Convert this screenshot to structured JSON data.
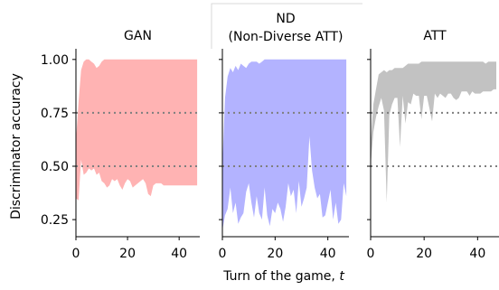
{
  "figure": {
    "ylabel": "Discriminator accuracy",
    "xlabel_prefix": "Turn of the game, ",
    "xlabel_var": "t",
    "reference_lines": [
      0.5,
      0.75
    ],
    "reference_line_color": "#7f7f7f"
  },
  "chart_data": [
    {
      "type": "area",
      "title": "GAN",
      "title_lines": [
        "GAN"
      ],
      "fill_color": "#ffb3b3",
      "x": [
        0,
        1,
        2,
        3,
        4,
        5,
        6,
        7,
        8,
        9,
        10,
        11,
        12,
        13,
        14,
        15,
        16,
        17,
        18,
        19,
        20,
        21,
        22,
        23,
        24,
        25,
        26,
        27,
        28,
        29,
        30,
        31,
        32,
        33,
        34,
        35,
        36,
        37,
        38,
        39,
        40,
        41,
        42,
        43,
        44,
        45,
        46,
        47
      ],
      "upper": [
        0.62,
        0.8,
        0.95,
        0.99,
        1.0,
        1.0,
        0.99,
        0.98,
        0.96,
        0.97,
        0.99,
        1.0,
        1.0,
        1.0,
        1.0,
        1.0,
        1.0,
        1.0,
        1.0,
        1.0,
        1.0,
        1.0,
        1.0,
        1.0,
        1.0,
        1.0,
        1.0,
        1.0,
        1.0,
        1.0,
        1.0,
        1.0,
        1.0,
        1.0,
        1.0,
        1.0,
        1.0,
        1.0,
        1.0,
        1.0,
        1.0,
        1.0,
        1.0,
        1.0,
        1.0,
        1.0,
        1.0,
        1.0
      ],
      "lower": [
        0.35,
        0.34,
        0.53,
        0.46,
        0.47,
        0.49,
        0.48,
        0.49,
        0.46,
        0.47,
        0.43,
        0.42,
        0.4,
        0.41,
        0.44,
        0.43,
        0.44,
        0.41,
        0.39,
        0.42,
        0.44,
        0.43,
        0.4,
        0.41,
        0.42,
        0.43,
        0.44,
        0.42,
        0.37,
        0.36,
        0.41,
        0.42,
        0.42,
        0.42,
        0.41,
        0.41,
        0.41,
        0.41,
        0.41,
        0.41,
        0.41,
        0.41,
        0.41,
        0.41,
        0.41,
        0.41,
        0.41,
        0.41
      ],
      "xlim": [
        0,
        48
      ],
      "ylim": [
        0.17,
        1.05
      ],
      "xticks": [
        0,
        20,
        40
      ],
      "xtick_labels": [
        "0",
        "20",
        "40"
      ],
      "yticks": [
        0.25,
        0.5,
        0.75,
        1.0
      ],
      "ytick_labels": [
        "0.25",
        "0.50",
        "0.75",
        "1.00"
      ]
    },
    {
      "type": "area",
      "title": "ND (Non-Diverse ATT)",
      "title_lines": [
        "ND",
        "(Non-Diverse ATT)"
      ],
      "fill_color": "#b3b3ff",
      "x": [
        0,
        1,
        2,
        3,
        4,
        5,
        6,
        7,
        8,
        9,
        10,
        11,
        12,
        13,
        14,
        15,
        16,
        17,
        18,
        19,
        20,
        21,
        22,
        23,
        24,
        25,
        26,
        27,
        28,
        29,
        30,
        31,
        32,
        33,
        34,
        35,
        36,
        37,
        38,
        39,
        40,
        41,
        42,
        43,
        44,
        45,
        46,
        47
      ],
      "upper": [
        0.5,
        0.82,
        0.92,
        0.96,
        0.94,
        0.97,
        0.95,
        0.98,
        0.97,
        0.96,
        0.98,
        0.99,
        0.99,
        0.99,
        0.98,
        0.99,
        1.0,
        1.0,
        1.0,
        1.0,
        1.0,
        1.0,
        1.0,
        1.0,
        1.0,
        1.0,
        1.0,
        1.0,
        1.0,
        1.0,
        1.0,
        1.0,
        1.0,
        1.0,
        1.0,
        1.0,
        1.0,
        1.0,
        1.0,
        1.0,
        1.0,
        1.0,
        1.0,
        1.0,
        1.0,
        1.0,
        1.0,
        1.0
      ],
      "lower": [
        0.2,
        0.27,
        0.3,
        0.4,
        0.28,
        0.33,
        0.23,
        0.26,
        0.28,
        0.38,
        0.42,
        0.33,
        0.26,
        0.36,
        0.28,
        0.25,
        0.4,
        0.27,
        0.22,
        0.3,
        0.28,
        0.33,
        0.3,
        0.24,
        0.31,
        0.42,
        0.36,
        0.39,
        0.28,
        0.43,
        0.31,
        0.35,
        0.4,
        0.64,
        0.48,
        0.4,
        0.35,
        0.37,
        0.26,
        0.27,
        0.33,
        0.39,
        0.25,
        0.33,
        0.23,
        0.25,
        0.42,
        0.36
      ],
      "xlim": [
        0,
        48
      ],
      "ylim": [
        0.17,
        1.05
      ],
      "xticks": [
        0,
        20,
        40
      ],
      "xtick_labels": [
        "0",
        "20",
        "40"
      ],
      "yticks": [
        0.25,
        0.5,
        0.75,
        1.0
      ],
      "ytick_labels": [
        "0.25",
        "0.50",
        "0.75",
        "1.00"
      ]
    },
    {
      "type": "area",
      "title": "ATT",
      "title_lines": [
        "ATT"
      ],
      "fill_color": "#c2c2c2",
      "x": [
        0,
        1,
        2,
        3,
        4,
        5,
        6,
        7,
        8,
        9,
        10,
        11,
        12,
        13,
        14,
        15,
        16,
        17,
        18,
        19,
        20,
        21,
        22,
        23,
        24,
        25,
        26,
        27,
        28,
        29,
        30,
        31,
        32,
        33,
        34,
        35,
        36,
        37,
        38,
        39,
        40,
        41,
        42,
        43,
        44,
        45,
        46,
        47
      ],
      "upper": [
        0.6,
        0.79,
        0.86,
        0.93,
        0.94,
        0.95,
        0.94,
        0.95,
        0.95,
        0.96,
        0.96,
        0.96,
        0.96,
        0.97,
        0.98,
        0.98,
        0.98,
        0.98,
        0.98,
        0.99,
        0.99,
        0.99,
        0.99,
        0.99,
        0.99,
        0.99,
        0.99,
        0.99,
        0.99,
        0.99,
        0.99,
        0.99,
        0.99,
        0.99,
        0.99,
        0.99,
        0.99,
        0.99,
        0.99,
        0.99,
        0.99,
        0.99,
        0.99,
        0.98,
        0.99,
        0.99,
        0.99,
        0.99
      ],
      "lower": [
        0.5,
        0.66,
        0.73,
        0.78,
        0.82,
        0.76,
        0.33,
        0.74,
        0.79,
        0.82,
        0.82,
        0.59,
        0.83,
        0.7,
        0.8,
        0.79,
        0.84,
        0.83,
        0.83,
        0.72,
        0.83,
        0.83,
        0.77,
        0.71,
        0.84,
        0.82,
        0.84,
        0.83,
        0.82,
        0.84,
        0.84,
        0.82,
        0.81,
        0.82,
        0.85,
        0.85,
        0.85,
        0.83,
        0.85,
        0.84,
        0.84,
        0.84,
        0.85,
        0.85,
        0.85,
        0.85,
        0.86,
        0.86
      ],
      "xlim": [
        0,
        48
      ],
      "ylim": [
        0.17,
        1.05
      ],
      "xticks": [
        0,
        20,
        40
      ],
      "xtick_labels": [
        "0",
        "20",
        "40"
      ],
      "yticks": [
        0.25,
        0.5,
        0.75,
        1.0
      ],
      "ytick_labels": [
        "0.25",
        "0.50",
        "0.75",
        "1.00"
      ]
    }
  ]
}
